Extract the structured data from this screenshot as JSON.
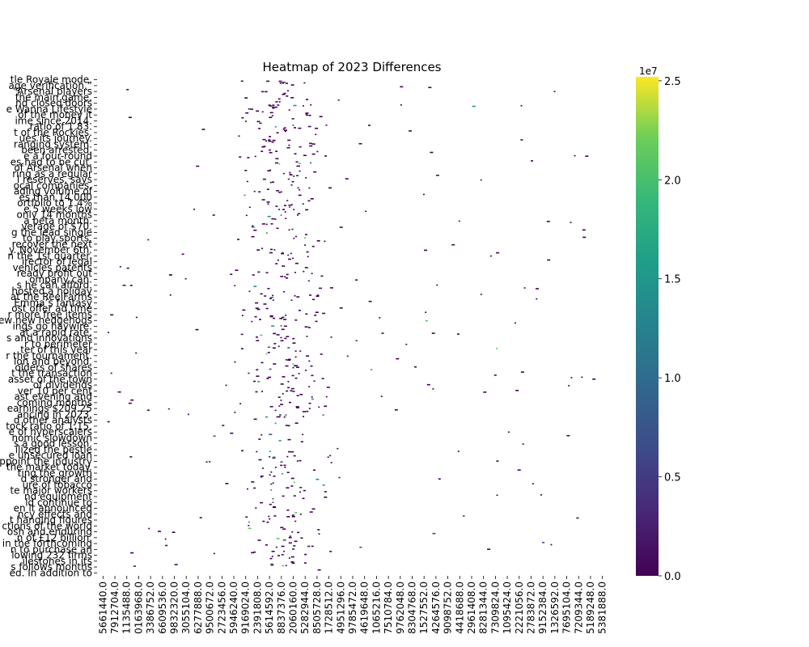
{
  "chart_data": {
    "type": "heatmap",
    "title": "Heatmap of 2023 Differences",
    "xlabel": "",
    "ylabel": "",
    "colormap": "viridis",
    "colorbar": {
      "range": [
        0,
        25200000
      ],
      "ticks": [
        0.0,
        0.5,
        1.0,
        1.5,
        2.0,
        2.5
      ],
      "tick_labels": [
        "0.0",
        "0.5",
        "1.0",
        "1.5",
        "2.0",
        "2.5"
      ],
      "exponent_label": "1e7"
    },
    "x_tick_labels": [
      "5661440.0",
      "7912704.0",
      "1135488.0",
      "0163968.0",
      "3386752.0",
      "6609536.0",
      "9832320.0",
      "3055104.0",
      "6277888.0",
      "9500672.0",
      "2723456.0",
      "5946240.0",
      "9169024.0",
      "2391808.0",
      "5614592.0",
      "8837376.0",
      "2060160.0",
      "5282944.0",
      "8505728.0",
      "1728512.0",
      "4951296.0",
      "9785472.0",
      "4619648.0",
      "1065216.0",
      "7510784.0",
      "9762048.0",
      "8304768.0",
      "1527552.0",
      "4264576.0",
      "9098752.0",
      "4418688.0",
      "2961408.0",
      "8281344.0",
      "7309824.0",
      "1095424.0",
      "2221056.0",
      "2783872.0",
      "9152384.0",
      "1326592.0",
      "7695104.0",
      "7209344.0",
      "5189248.0",
      "5381888.0"
    ],
    "y_tick_labels": [
      "tle Royale mode.",
      "age verification.”",
      "“Arsenal players",
      "the main game.",
      "nd closed doors",
      "e Wanna Lifestyle",
      "of the money it",
      "ime since 2014.",
      "ratio of 1.83.",
      "t of the Rockies.",
      "ues its journey.",
      "ranging system.",
      "been arrested.",
      "e a four-round",
      "es had to be cut.",
      "of Arsenal when",
      "ring as a regular",
      "l reserves, says",
      "ocal companies.",
      "ading volume of",
      "es than 14,000",
      "ortfolio to 1.4%",
      "e 5 weeks low",
      "only 14 months",
      "a beta month.",
      "verage of $70.",
      "g the lead single",
      "to play sports.",
      "recover the next",
      "y. November 6th.",
      "n the 1st quarter.",
      "irector of legal",
      "vehicles patents",
      "ready profit out",
      "ompany can.",
      "s he can afford.",
      "hosted a holiday",
      "at the ReelFarms",
      "Emma’s fantasy",
      "ost offer ad time",
      "r more free items",
      "ew new hedgehogs",
      "ings go haywire.",
      "at a rapid rate.",
      "s and innovations",
      "r to perimeter",
      "ter of this year",
      "r the tournament.",
      "ion and beyond.",
      "olders of shares",
      "t the transaction",
      "asset of the town",
      "of dividends",
      "ver 10 per cent",
      "ast evening and",
      "coming months",
      "earnings $209.25",
      "ancing in 2023.",
      "d other analysts",
      "tock ratio of 1.15.",
      "e of hyperscalers",
      "nomic slowdown",
      "s a good lesson.",
      "ilized the pestle",
      "e unsecured loan",
      "ppoint the industry",
      "the market today.",
      "ting the growth",
      "d stronger and",
      "ure of tobacco",
      "te major workers",
      "nd equipment",
      "ld continue to",
      "en it announced",
      "ncy effects and",
      "t hanging figures",
      "ctions of the world",
      "osh and enduring",
      "n of £12 billion.",
      "ed in the forthcoming",
      "n to purchase an",
      "lowing 232 firms",
      "ilestones in its",
      "s follows months",
      "ed. In addition to"
    ]
  }
}
